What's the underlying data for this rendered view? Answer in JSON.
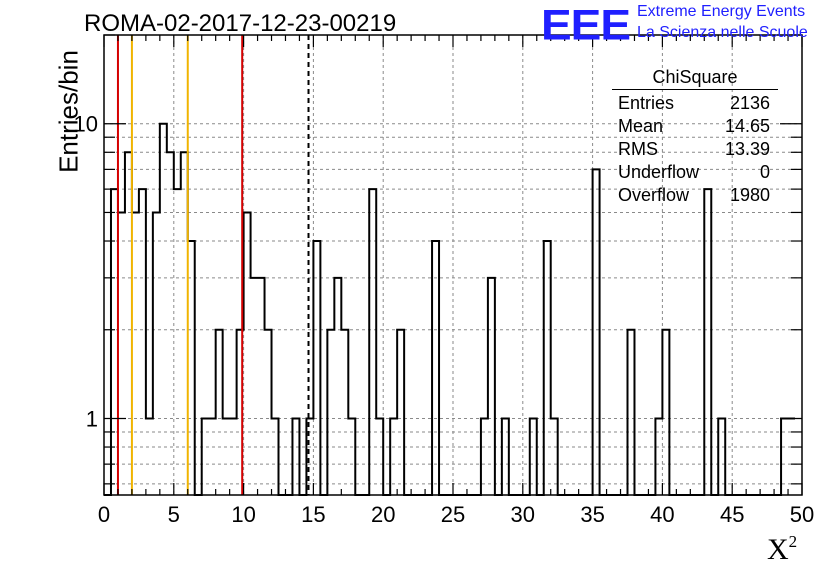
{
  "title": "ROMA-02-2017-12-23-00219",
  "logo": {
    "text": "EEE",
    "line1": "Extreme Energy Events",
    "line2": "La Scienza nelle Scuole",
    "color": "#1f1fff"
  },
  "stats_box": {
    "title": "ChiSquare",
    "rows": [
      {
        "label": "Entries",
        "value": "2136"
      },
      {
        "label": "Mean",
        "value": "14.65"
      },
      {
        "label": "RMS",
        "value": "13.39"
      },
      {
        "label": "Underflow",
        "value": "0"
      },
      {
        "label": "Overflow",
        "value": "1980"
      }
    ]
  },
  "chart_data": {
    "type": "histogram",
    "title": "ROMA-02-2017-12-23-00219",
    "xlabel": "X²",
    "ylabel": "Entries/bin",
    "xlim": [
      0,
      50
    ],
    "ylim": [
      0.55,
      20
    ],
    "yscale": "log",
    "grid": true,
    "bin_width": 0.5,
    "x_ticks": [
      0,
      5,
      10,
      15,
      20,
      25,
      30,
      35,
      40,
      45,
      50
    ],
    "y_tick_labels": [
      1,
      10
    ],
    "values": [
      0,
      6,
      5,
      8,
      5,
      6,
      1,
      5,
      10,
      8,
      6,
      8,
      4,
      0,
      1,
      1,
      2,
      1,
      1,
      2,
      5,
      3,
      3,
      2,
      1,
      0,
      0,
      1,
      0,
      1,
      4,
      0,
      2,
      3,
      2,
      1,
      0,
      0,
      6,
      1,
      0,
      1,
      2,
      0,
      0,
      0,
      0,
      4,
      0,
      0,
      0,
      0,
      0,
      0,
      1,
      3,
      0,
      1,
      0,
      0,
      0,
      1,
      0,
      4,
      1,
      0,
      0,
      0,
      0,
      0,
      7,
      0,
      0,
      0,
      0,
      2,
      0,
      0,
      0,
      1,
      2,
      0,
      0,
      0,
      0,
      0,
      6,
      0,
      1,
      0,
      0,
      0,
      0,
      0,
      0,
      0,
      0,
      1,
      1
    ],
    "vertical_lines": [
      {
        "x": 1.0,
        "color": "#d40000",
        "style": "solid"
      },
      {
        "x": 2.0,
        "color": "#f0b400",
        "style": "solid"
      },
      {
        "x": 6.0,
        "color": "#f0b400",
        "style": "solid"
      },
      {
        "x": 9.9,
        "color": "#d40000",
        "style": "solid"
      },
      {
        "x": 14.65,
        "color": "#000000",
        "style": "dashed"
      }
    ]
  }
}
